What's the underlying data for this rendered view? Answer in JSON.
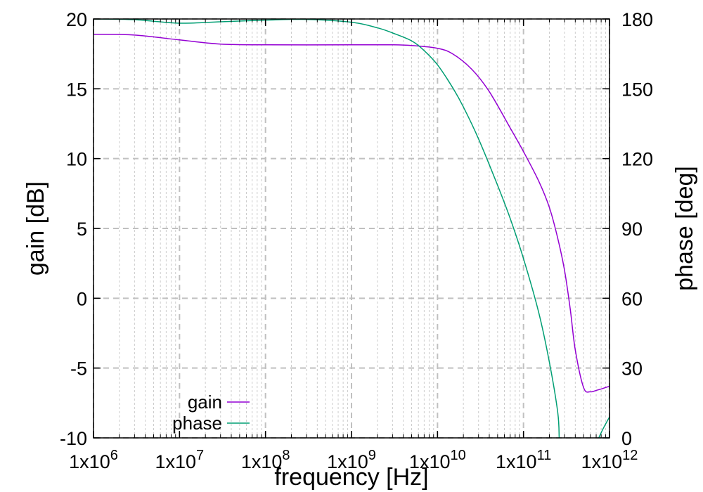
{
  "chart_data": {
    "type": "line",
    "x_scale": "log",
    "xlabel": "frequency [Hz]",
    "ylabel": "gain [dB]",
    "y2label": "phase [deg]",
    "xlim": [
      1000000,
      1000000000000
    ],
    "ylim": [
      -10,
      20
    ],
    "y2lim": [
      0,
      180
    ],
    "grid": true,
    "legend_position": "bottom-left",
    "x_ticks": [
      {
        "value": 1000000,
        "label": "1x10",
        "exp": "6"
      },
      {
        "value": 10000000,
        "label": "1x10",
        "exp": "7"
      },
      {
        "value": 100000000,
        "label": "1x10",
        "exp": "8"
      },
      {
        "value": 1000000000,
        "label": "1x10",
        "exp": "9"
      },
      {
        "value": 10000000000,
        "label": "1x10",
        "exp": "10"
      },
      {
        "value": 100000000000,
        "label": "1x10",
        "exp": "11"
      },
      {
        "value": 1000000000000,
        "label": "1x10",
        "exp": "12"
      }
    ],
    "y_ticks": [
      {
        "value": -10,
        "label": "-10"
      },
      {
        "value": -5,
        "label": "-5"
      },
      {
        "value": 0,
        "label": "0"
      },
      {
        "value": 5,
        "label": "5"
      },
      {
        "value": 10,
        "label": "10"
      },
      {
        "value": 15,
        "label": "15"
      },
      {
        "value": 20,
        "label": "20"
      }
    ],
    "y2_ticks": [
      {
        "value": 0,
        "label": "0"
      },
      {
        "value": 30,
        "label": "30"
      },
      {
        "value": 60,
        "label": "60"
      },
      {
        "value": 90,
        "label": "90"
      },
      {
        "value": 120,
        "label": "120"
      },
      {
        "value": 150,
        "label": "150"
      },
      {
        "value": 180,
        "label": "180"
      }
    ],
    "series": [
      {
        "name": "gain",
        "axis": "left",
        "color": "#9400d3",
        "x": [
          1000000,
          3000000,
          10000000,
          30000000,
          100000000,
          1000000000,
          3000000000,
          5000000000,
          10000000000,
          15000000000,
          25000000000,
          40000000000,
          70000000000,
          100000000000,
          150000000000,
          200000000000,
          250000000000,
          300000000000,
          350000000000,
          400000000000,
          500000000000,
          600000000000,
          700000000000,
          800000000000,
          1000000000000
        ],
        "values": [
          18.9,
          18.85,
          18.5,
          18.2,
          18.15,
          18.15,
          18.15,
          18.1,
          17.9,
          17.5,
          16.4,
          14.8,
          12.2,
          10.5,
          8.4,
          6.5,
          4.3,
          2.0,
          -0.8,
          -3.7,
          -6.4,
          -6.7,
          -6.6,
          -6.5,
          -6.3
        ]
      },
      {
        "name": "phase",
        "axis": "right",
        "color": "#009e73",
        "x": [
          1000000,
          3000000,
          10000000,
          30000000,
          100000000,
          300000000,
          1000000000,
          2000000000,
          3000000000,
          5000000000,
          7000000000,
          10000000000,
          15000000000,
          20000000000,
          30000000000,
          50000000000,
          70000000000,
          100000000000,
          150000000000,
          200000000000,
          250000000000,
          260000000000
        ],
        "values": [
          180,
          179.7,
          178.2,
          178.8,
          179.5,
          179.8,
          178.6,
          176.2,
          174.0,
          170.6,
          166.4,
          160.3,
          150.5,
          142.2,
          128.5,
          108.5,
          94.3,
          77.0,
          54.0,
          32.5,
          11.0,
          0.0
        ]
      },
      {
        "name": "",
        "axis": "right",
        "color": "#009e73",
        "x": [
          750000000000,
          850000000000,
          1000000000000
        ],
        "values": [
          0.0,
          4.2,
          9.0
        ]
      }
    ],
    "legend": [
      {
        "label": "gain",
        "color": "#9400d3"
      },
      {
        "label": "phase",
        "color": "#009e73"
      }
    ]
  }
}
